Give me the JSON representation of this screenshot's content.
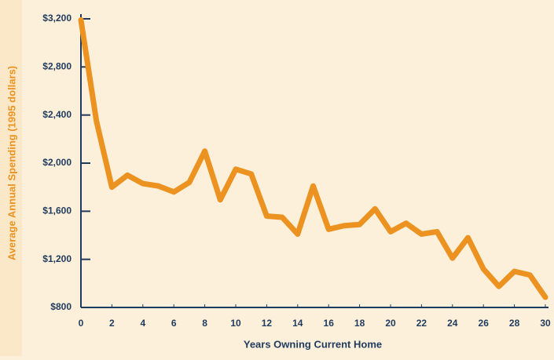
{
  "chart_data": {
    "type": "line",
    "x_label": "Years Owning Current Home",
    "y_label": "Average Annual Spending (1995 dollars)",
    "x": [
      0,
      1,
      2,
      3,
      4,
      5,
      6,
      7,
      8,
      9,
      10,
      11,
      12,
      13,
      14,
      15,
      16,
      17,
      18,
      19,
      20,
      21,
      22,
      23,
      24,
      25,
      26,
      27,
      28,
      29,
      30
    ],
    "series": [
      {
        "name": "Average Annual Spending",
        "color": "#ec9220",
        "values": [
          3190,
          2350,
          1800,
          1900,
          1830,
          1810,
          1760,
          1840,
          2100,
          1695,
          1950,
          1910,
          1560,
          1550,
          1410,
          1810,
          1450,
          1480,
          1490,
          1620,
          1430,
          1500,
          1410,
          1430,
          1210,
          1380,
          1120,
          975,
          1100,
          1070,
          885
        ]
      }
    ],
    "xlim": [
      0,
      30
    ],
    "xticks": [
      0,
      2,
      4,
      6,
      8,
      10,
      12,
      14,
      16,
      18,
      20,
      22,
      24,
      26,
      28,
      30
    ],
    "ylim": [
      800,
      3200
    ],
    "yticks": [
      {
        "value": 800,
        "label": "$800"
      },
      {
        "value": 1200,
        "label": "$1,200"
      },
      {
        "value": 1600,
        "label": "$1,600"
      },
      {
        "value": 2000,
        "label": "$2,000"
      },
      {
        "value": 2400,
        "label": "$2,400"
      },
      {
        "value": 2800,
        "label": "$2,800"
      },
      {
        "value": 3200,
        "label": "$3,200"
      }
    ]
  }
}
